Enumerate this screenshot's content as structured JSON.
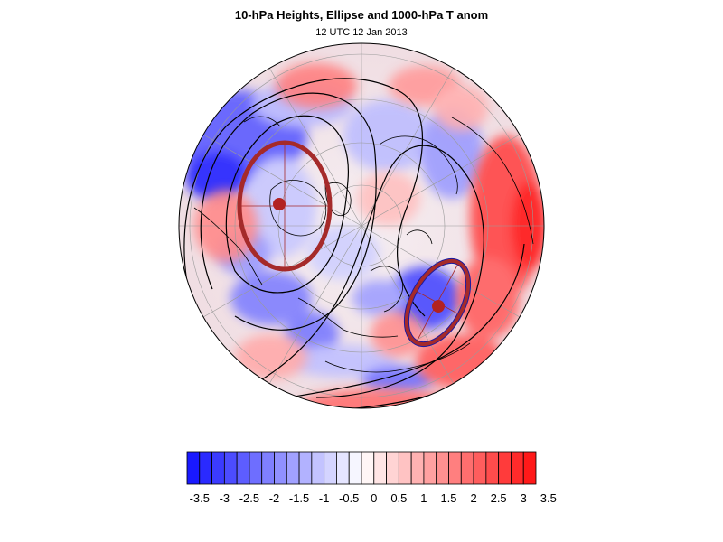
{
  "title": "10-hPa Heights, Ellipse and 1000-hPa T anom",
  "subtitle": "12 UTC 12 Jan 2013",
  "colorbar": {
    "tick_labels": [
      "-3.5",
      "-3",
      "-2.5",
      "-2",
      "-1.5",
      "-1",
      "-0.5",
      "0",
      "0.5",
      "1",
      "1.5",
      "2",
      "2.5",
      "3",
      "3.5"
    ],
    "levels": [
      -3.5,
      -3.25,
      -3,
      -2.75,
      -2.5,
      -2.25,
      -2,
      -1.75,
      -1.5,
      -1.25,
      -1,
      -0.75,
      -0.5,
      -0.25,
      0,
      0.25,
      0.5,
      0.75,
      1,
      1.25,
      1.5,
      1.75,
      2,
      2.25,
      2.5,
      2.75,
      3,
      3.25,
      3.5
    ],
    "negative_color": "#1010ff",
    "positive_color": "#ff1010",
    "neutral_color": "#ffffff"
  },
  "map": {
    "projection": "polar stereographic (north)",
    "ellipse_color": "#a52a2a",
    "contour_color": "#000000",
    "ellipse_centers": 2
  }
}
